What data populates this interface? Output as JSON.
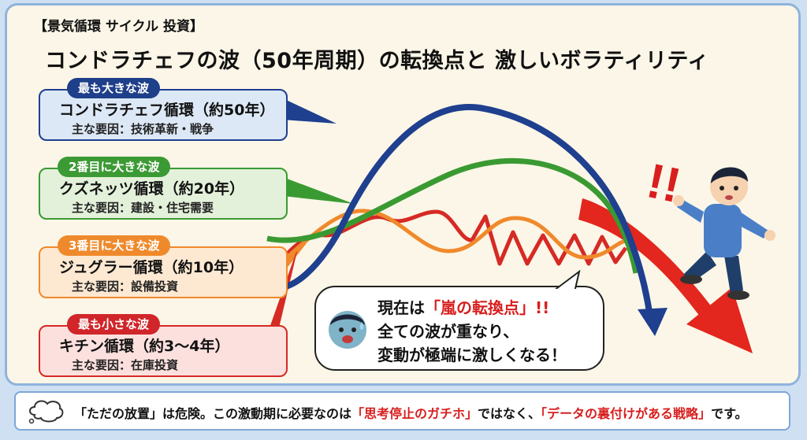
{
  "header": {
    "kicker": "【景気循環 サイクル 投資】",
    "title": "コンドラチェフの波（50年周期）の転換点と 激しいボラティリティ"
  },
  "cycles": [
    {
      "tag": "最も大きな波",
      "name": "コンドラチェフ循環（約50年）",
      "factor": "主な要因：技術革新・戦争",
      "color": "#1f3f8f",
      "bg": "#dde8f6",
      "pill": "#1e3f8a"
    },
    {
      "tag": "2番目に大きな波",
      "name": "クズネッツ循環（約20年）",
      "factor": "主な要因：建設・住宅需要",
      "color": "#3a9a32",
      "bg": "#e3f1da",
      "pill": "#3c9a34"
    },
    {
      "tag": "3番目に大きな波",
      "name": "ジュグラー循環（約10年）",
      "factor": "主な要因：設備投資",
      "color": "#f0892b",
      "bg": "#fde8d2",
      "pill": "#ef8a2c"
    },
    {
      "tag": "最も小さな波",
      "name": "キチン循環（約3〜4年）",
      "factor": "主な要因：在庫投資",
      "color": "#d62a24",
      "bg": "#fbe0de",
      "pill": "#d0262a"
    }
  ],
  "bubble": {
    "l1_pre": "現在は",
    "l1_red": "「嵐の転換点」",
    "l1_post": "!!",
    "line2": "全ての波が重なり、",
    "line3": "変動が極端に激しくなる！"
  },
  "exclaim": "!!",
  "footer": {
    "t1": "「ただの放置」は危険。この激動期に必要なのは",
    "r1": "「思考停止のガチホ」",
    "t2": "ではなく、",
    "r2": "「データの裏付けがある戦略」",
    "t3": "です。"
  },
  "icons": {
    "footer": "thought-cloud-icon",
    "bubble": "worried-face-icon",
    "person": "falling-man-illustration"
  }
}
